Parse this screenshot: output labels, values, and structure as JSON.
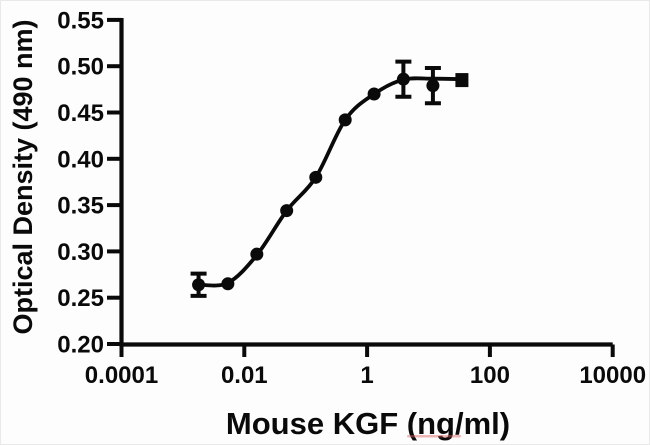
{
  "figure": {
    "background": "#fdfdfd",
    "ink_color": "#0a0a0a",
    "spellcheck_underline_color": "rgba(219,96,96,0.45)"
  },
  "chart_data": {
    "type": "scatter",
    "subtype": "sigmoidal-dose-response-with-fit",
    "title": "",
    "xlabel": "Mouse KGF (ng/ml)",
    "ylabel": "Optical Density (490 nm)",
    "x_scale": "log10",
    "xlim": [
      0.0001,
      10000
    ],
    "ylim": [
      0.2,
      0.55
    ],
    "grid": false,
    "legend": "none",
    "x_ticks": {
      "values": [
        0.0001,
        0.01,
        1,
        100,
        10000
      ],
      "labels": [
        "0.0001",
        "0.01",
        "1",
        "100",
        "10000"
      ]
    },
    "y_ticks": {
      "values": [
        0.2,
        0.25,
        0.3,
        0.35,
        0.4,
        0.45,
        0.5,
        0.55
      ],
      "labels": [
        "0.20",
        "0.25",
        "0.30",
        "0.35",
        "0.40",
        "0.45",
        "0.50",
        "0.55"
      ]
    },
    "series": [
      {
        "color": "#0a0a0a",
        "marker_default": "filled-circle",
        "points": [
          {
            "x": 0.0018,
            "y": 0.264,
            "err": 0.012,
            "marker": "circle"
          },
          {
            "x": 0.0054,
            "y": 0.265,
            "err": 0,
            "marker": "circle"
          },
          {
            "x": 0.016,
            "y": 0.297,
            "err": 0,
            "marker": "circle"
          },
          {
            "x": 0.049,
            "y": 0.344,
            "err": 0,
            "marker": "circle"
          },
          {
            "x": 0.146,
            "y": 0.38,
            "err": 0,
            "marker": "circle"
          },
          {
            "x": 0.44,
            "y": 0.442,
            "err": 0,
            "marker": "circle"
          },
          {
            "x": 1.3,
            "y": 0.47,
            "err": 0,
            "marker": "circle"
          },
          {
            "x": 3.9,
            "y": 0.486,
            "err": 0.019,
            "marker": "circle"
          },
          {
            "x": 11.8,
            "y": 0.479,
            "err": 0.019,
            "marker": "circle"
          },
          {
            "x": 35,
            "y": 0.485,
            "err": 0.004,
            "marker": "square"
          }
        ]
      }
    ],
    "fit_curve": {
      "description": "smooth sigmoidal fit through data points",
      "anchors": [
        [
          0.0018,
          0.264
        ],
        [
          0.0054,
          0.266
        ],
        [
          0.016,
          0.296
        ],
        [
          0.049,
          0.344
        ],
        [
          0.146,
          0.38
        ],
        [
          0.44,
          0.442
        ],
        [
          1.3,
          0.47
        ],
        [
          3.9,
          0.4855
        ],
        [
          11.8,
          0.4865
        ],
        [
          35,
          0.486
        ]
      ]
    }
  }
}
